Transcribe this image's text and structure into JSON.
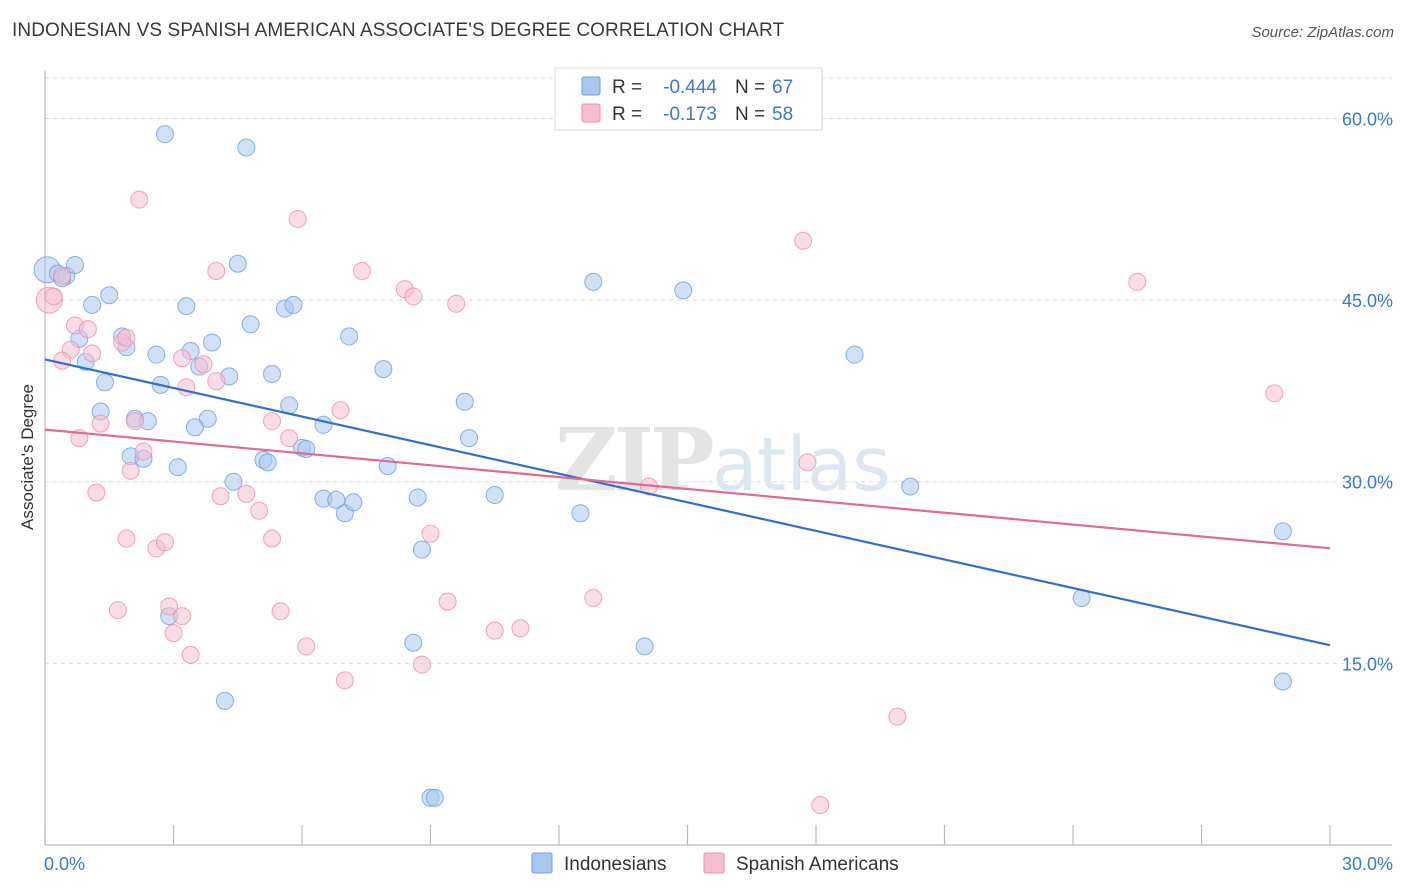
{
  "title": "INDONESIAN VS SPANISH AMERICAN ASSOCIATE'S DEGREE CORRELATION CHART",
  "source": "Source: ZipAtlas.com",
  "colors": {
    "indonesians": "#6a9fe0",
    "indonesians_fill": "#a9c8f0",
    "indonesians_line": "#2f6fd0",
    "spanish": "#ec8fae",
    "spanish_fill": "#f5bfd1",
    "spanish_line": "#e06a93",
    "tick_label": "#3b78d0",
    "grid": "#dddddd"
  },
  "legend_box": [
    {
      "r_label": "R =",
      "r_value": "-0.444",
      "n_label": "N =",
      "n_value": "67"
    },
    {
      "r_label": "R =",
      "r_value": "-0.173",
      "n_label": "N =",
      "n_value": "58"
    }
  ],
  "chart_data": {
    "type": "scatter",
    "watermark": "ZIPatlas",
    "xlabel": "",
    "ylabel": "Associate's Degree",
    "xlim": [
      0,
      30
    ],
    "ylim": [
      0,
      64
    ],
    "x_tick_labels": [
      {
        "value": 0,
        "label": "0.0%"
      },
      {
        "value": 30,
        "label": "30.0%"
      }
    ],
    "y_tick_labels": [
      {
        "value": 15,
        "label": "15.0%"
      },
      {
        "value": 30,
        "label": "30.0%"
      },
      {
        "value": 45,
        "label": "45.0%"
      },
      {
        "value": 60,
        "label": "60.0%"
      }
    ],
    "x_minor_ticks": [
      0,
      3,
      6,
      9,
      12,
      15,
      18,
      21,
      24,
      27,
      30
    ],
    "grid": true,
    "legend_position": "bottom-center",
    "series": [
      {
        "name": "Indonesians",
        "trend": {
          "x": [
            0,
            30
          ],
          "y": [
            40.1,
            16.5
          ]
        },
        "points": [
          [
            0.05,
            47.5
          ],
          [
            0.3,
            47.2
          ],
          [
            0.5,
            47.0
          ],
          [
            0.7,
            47.9
          ],
          [
            0.4,
            46.8
          ],
          [
            1.1,
            44.6
          ],
          [
            1.5,
            45.4
          ],
          [
            0.8,
            41.8
          ],
          [
            1.8,
            42.0
          ],
          [
            1.9,
            41.1
          ],
          [
            0.95,
            39.9
          ],
          [
            1.4,
            38.2
          ],
          [
            1.3,
            35.8
          ],
          [
            2.1,
            35.2
          ],
          [
            2.4,
            35.0
          ],
          [
            2.0,
            32.1
          ],
          [
            2.3,
            31.9
          ],
          [
            2.6,
            40.5
          ],
          [
            2.7,
            38.0
          ],
          [
            3.1,
            31.2
          ],
          [
            3.3,
            44.5
          ],
          [
            3.4,
            40.8
          ],
          [
            3.6,
            39.5
          ],
          [
            3.9,
            41.5
          ],
          [
            3.8,
            35.2
          ],
          [
            3.5,
            34.5
          ],
          [
            4.3,
            38.7
          ],
          [
            4.5,
            48.0
          ],
          [
            4.8,
            43.0
          ],
          [
            4.4,
            30.0
          ],
          [
            5.1,
            31.8
          ],
          [
            5.2,
            31.6
          ],
          [
            5.3,
            38.9
          ],
          [
            5.6,
            44.3
          ],
          [
            5.8,
            44.6
          ],
          [
            5.7,
            36.3
          ],
          [
            6.0,
            32.8
          ],
          [
            6.1,
            32.7
          ],
          [
            6.5,
            34.7
          ],
          [
            6.5,
            28.6
          ],
          [
            6.8,
            28.5
          ],
          [
            7.0,
            27.4
          ],
          [
            7.2,
            28.3
          ],
          [
            7.1,
            42.0
          ],
          [
            7.9,
            39.3
          ],
          [
            8.0,
            31.3
          ],
          [
            8.7,
            28.7
          ],
          [
            8.8,
            24.4
          ],
          [
            9.8,
            36.6
          ],
          [
            9.9,
            33.6
          ],
          [
            10.5,
            28.9
          ],
          [
            12.5,
            27.4
          ],
          [
            12.8,
            46.5
          ],
          [
            14.0,
            16.4
          ],
          [
            14.9,
            45.8
          ],
          [
            18.9,
            40.5
          ],
          [
            20.2,
            29.6
          ],
          [
            24.2,
            20.4
          ],
          [
            28.9,
            25.9
          ],
          [
            28.9,
            13.5
          ],
          [
            4.2,
            11.9
          ],
          [
            8.6,
            16.7
          ],
          [
            9.0,
            3.9
          ],
          [
            9.1,
            3.9
          ],
          [
            2.9,
            18.9
          ],
          [
            2.8,
            58.7
          ],
          [
            4.7,
            57.6
          ]
        ]
      },
      {
        "name": "Spanish Americans",
        "trend": {
          "x": [
            0,
            30
          ],
          "y": [
            34.3,
            24.5
          ]
        },
        "points": [
          [
            0.1,
            45.0
          ],
          [
            0.2,
            45.3
          ],
          [
            0.4,
            47.0
          ],
          [
            0.6,
            40.9
          ],
          [
            0.4,
            40.0
          ],
          [
            0.7,
            42.9
          ],
          [
            1.0,
            42.6
          ],
          [
            1.1,
            40.6
          ],
          [
            1.3,
            34.8
          ],
          [
            0.8,
            33.6
          ],
          [
            1.2,
            29.1
          ],
          [
            1.8,
            41.5
          ],
          [
            1.9,
            41.9
          ],
          [
            2.1,
            35.0
          ],
          [
            2.3,
            32.5
          ],
          [
            1.9,
            25.3
          ],
          [
            2.0,
            30.9
          ],
          [
            2.6,
            24.5
          ],
          [
            2.8,
            25.0
          ],
          [
            1.7,
            19.4
          ],
          [
            2.9,
            19.7
          ],
          [
            3.0,
            17.5
          ],
          [
            3.2,
            18.9
          ],
          [
            3.4,
            15.7
          ],
          [
            3.2,
            40.2
          ],
          [
            3.3,
            37.8
          ],
          [
            3.7,
            39.7
          ],
          [
            4.0,
            38.3
          ],
          [
            4.0,
            47.4
          ],
          [
            4.1,
            28.8
          ],
          [
            4.7,
            29.0
          ],
          [
            5.0,
            27.6
          ],
          [
            5.3,
            35.0
          ],
          [
            5.3,
            25.3
          ],
          [
            5.5,
            19.3
          ],
          [
            5.7,
            33.6
          ],
          [
            5.9,
            51.7
          ],
          [
            6.1,
            16.4
          ],
          [
            6.9,
            35.9
          ],
          [
            7.4,
            47.4
          ],
          [
            7.0,
            13.6
          ],
          [
            8.4,
            45.9
          ],
          [
            8.6,
            45.3
          ],
          [
            8.8,
            14.9
          ],
          [
            9.0,
            25.7
          ],
          [
            9.4,
            20.1
          ],
          [
            9.6,
            44.7
          ],
          [
            10.5,
            17.7
          ],
          [
            11.1,
            17.9
          ],
          [
            12.8,
            20.4
          ],
          [
            14.1,
            29.6
          ],
          [
            17.7,
            49.9
          ],
          [
            17.8,
            31.6
          ],
          [
            19.9,
            10.6
          ],
          [
            18.1,
            3.3
          ],
          [
            25.5,
            46.5
          ],
          [
            28.7,
            37.3
          ],
          [
            2.2,
            53.3
          ]
        ]
      }
    ]
  }
}
